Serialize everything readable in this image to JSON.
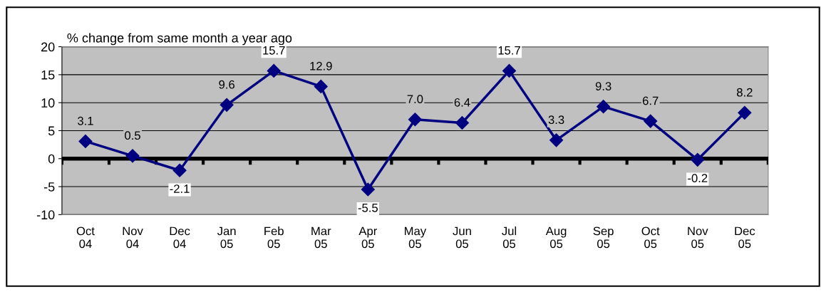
{
  "chart_data": {
    "type": "line",
    "title": "% change from same month a year ago",
    "categories": [
      "Oct\n04",
      "Nov\n04",
      "Dec\n04",
      "Jan\n05",
      "Feb\n05",
      "Mar\n05",
      "Apr\n05",
      "May\n05",
      "Jun\n05",
      "Jul\n05",
      "Aug\n05",
      "Sep\n05",
      "Oct\n05",
      "Nov\n05",
      "Dec\n05"
    ],
    "series": [
      {
        "color": "#000080",
        "values": [
          3.1,
          0.5,
          -2.1,
          9.6,
          15.7,
          12.9,
          -5.5,
          7.0,
          6.4,
          15.7,
          3.3,
          9.3,
          6.7,
          -0.2,
          8.2
        ],
        "value_labels": [
          "3.1",
          "0.5",
          "-2.1",
          "9.6",
          "15.7",
          "12.9",
          "-5.5",
          "7.0",
          "6.4",
          "15.7",
          "3.3",
          "9.3",
          "6.7",
          "-0.2",
          "8.2"
        ]
      }
    ],
    "ylim": [
      -10,
      20
    ],
    "yticks": [
      -10,
      -5,
      0,
      5,
      10,
      15,
      20
    ],
    "ref_lines": [
      {
        "axis": "y",
        "value": 0,
        "color": "#000000"
      }
    ],
    "grid": "y",
    "marker": "diamond",
    "line_style": "solid",
    "legend": false
  }
}
